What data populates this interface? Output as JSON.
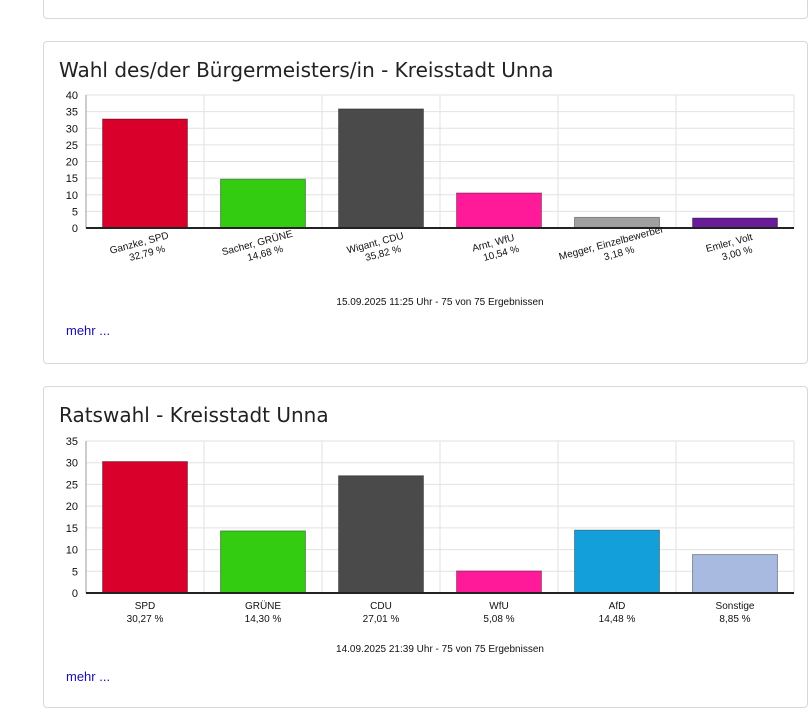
{
  "charts": [
    {
      "title": "Wahl des/der Bürgermeisters/in - Kreisstadt Unna",
      "footer": "15.09.2025 11:25 Uhr - 75 von 75 Ergebnissen",
      "more_label": "mehr ...",
      "chart_data": {
        "type": "bar",
        "ylim": [
          0,
          40
        ],
        "yticks": [
          0,
          5,
          10,
          15,
          20,
          25,
          30,
          35,
          40
        ],
        "grid": true,
        "rotated_labels": true,
        "categories": [
          "Ganzke, SPD",
          "Sacher, GRÜNE",
          "Wigant, CDU",
          "Arnt, WfU",
          "Megger, Einzelbewerber",
          "Emler, Volt"
        ],
        "value_labels": [
          "32,79 %",
          "14,68 %",
          "35,82 %",
          "10,54 %",
          "3,18 %",
          "3,00 %"
        ],
        "values": [
          32.79,
          14.68,
          35.82,
          10.54,
          3.18,
          3.0
        ],
        "colors": [
          "#d9002b",
          "#33cc11",
          "#4a4a4a",
          "#ff1a99",
          "#a0a0a0",
          "#6a1b9a"
        ]
      }
    },
    {
      "title": "Ratswahl - Kreisstadt Unna",
      "footer": "14.09.2025 21:39 Uhr - 75 von 75 Ergebnissen",
      "more_label": "mehr ...",
      "chart_data": {
        "type": "bar",
        "ylim": [
          0,
          35
        ],
        "yticks": [
          0,
          5,
          10,
          15,
          20,
          25,
          30,
          35
        ],
        "grid": true,
        "rotated_labels": false,
        "categories": [
          "SPD",
          "GRÜNE",
          "CDU",
          "WfU",
          "AfD",
          "Sonstige"
        ],
        "value_labels": [
          "30,27 %",
          "14,30 %",
          "27,01 %",
          "5,08 %",
          "14,48 %",
          "8,85 %"
        ],
        "values": [
          30.27,
          14.3,
          27.01,
          5.08,
          14.48,
          8.85
        ],
        "colors": [
          "#d9002b",
          "#33cc11",
          "#4a4a4a",
          "#ff1a99",
          "#139fd9",
          "#a8badf"
        ]
      }
    }
  ]
}
